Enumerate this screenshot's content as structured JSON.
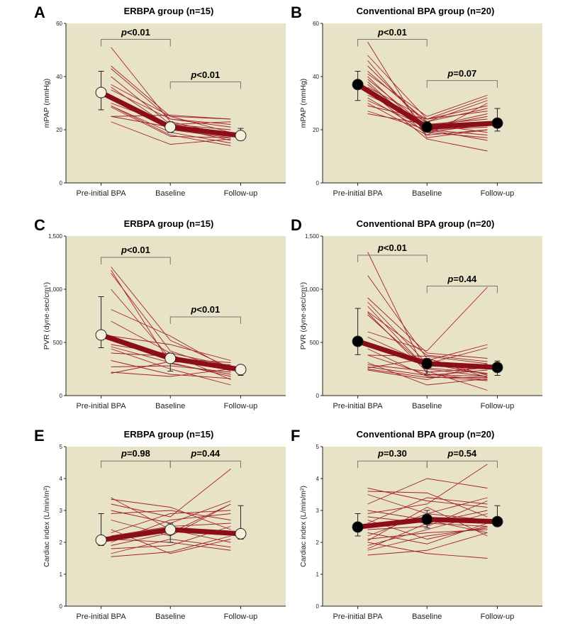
{
  "colors": {
    "plot_bg": "#e8e3c7",
    "individual": "#a3202e",
    "mean": "#8b0d1c",
    "bracket": "#777777",
    "open_marker": "#f4f0dc",
    "filled_marker": "#000000"
  },
  "chart_data": [
    {
      "letter": "A",
      "type": "line",
      "title": "ERBPA group (n=15)",
      "ylabel": "mPAP (mmHg)",
      "ylim": [
        0,
        60
      ],
      "yticks": [
        0,
        20,
        40,
        60
      ],
      "ytick_labels": [
        "0",
        "20",
        "40",
        "60"
      ],
      "categories": [
        "Pre-initial BPA",
        "Baseline",
        "Follow-up"
      ],
      "marker": "open",
      "mean": [
        34,
        21,
        17.8
      ],
      "err_low": [
        27.5,
        19,
        16
      ],
      "err_high": [
        42,
        23,
        20.5
      ],
      "comparisons": [
        {
          "from": 0,
          "to": 1,
          "level": 54,
          "label": "p<0.01"
        },
        {
          "from": 1,
          "to": 2,
          "level": 38,
          "label": "p<0.01"
        }
      ],
      "individuals": [
        [
          51,
          23,
          18
        ],
        [
          44,
          25,
          24
        ],
        [
          43,
          24,
          22
        ],
        [
          40,
          22,
          20
        ],
        [
          37,
          25,
          19
        ],
        [
          36,
          21,
          16
        ],
        [
          35,
          24,
          21
        ],
        [
          33,
          20,
          17
        ],
        [
          30,
          22,
          23
        ],
        [
          29,
          19,
          15
        ],
        [
          29,
          18,
          14
        ],
        [
          28.5,
          17.5,
          17
        ],
        [
          25,
          25.5,
          24
        ],
        [
          25,
          21,
          18
        ],
        [
          23,
          14.5,
          16.5
        ]
      ]
    },
    {
      "letter": "B",
      "type": "line",
      "title": "Conventional BPA group (n=20)",
      "ylabel": "mPAP (mmHg)",
      "ylim": [
        0,
        60
      ],
      "yticks": [
        0,
        20,
        40,
        60
      ],
      "ytick_labels": [
        "0",
        "20",
        "40",
        "60"
      ],
      "categories": [
        "Pre-initial BPA",
        "Baseline",
        "Follow-up"
      ],
      "marker": "filled",
      "mean": [
        37,
        21,
        22.5
      ],
      "err_low": [
        31,
        19.5,
        19.5
      ],
      "err_high": [
        42,
        23,
        28
      ],
      "comparisons": [
        {
          "from": 0,
          "to": 1,
          "level": 54,
          "label": "p<0.01"
        },
        {
          "from": 1,
          "to": 2,
          "level": 38.5,
          "label": "p=0.07"
        }
      ],
      "individuals": [
        [
          53,
          17,
          20
        ],
        [
          48,
          24,
          32
        ],
        [
          46,
          20,
          21
        ],
        [
          44,
          22,
          19
        ],
        [
          42,
          23,
          28
        ],
        [
          41,
          25,
          33
        ],
        [
          40,
          19,
          22
        ],
        [
          39,
          21,
          25
        ],
        [
          38,
          18,
          30
        ],
        [
          37,
          20,
          18
        ],
        [
          36,
          24,
          27
        ],
        [
          35,
          16.5,
          12
        ],
        [
          34,
          22,
          23
        ],
        [
          33,
          23,
          31
        ],
        [
          32,
          19,
          17
        ],
        [
          31,
          21,
          26
        ],
        [
          30,
          18,
          20
        ],
        [
          29,
          24,
          29
        ],
        [
          27,
          20,
          16
        ],
        [
          26,
          22,
          24
        ]
      ]
    },
    {
      "letter": "C",
      "type": "line",
      "title": "ERBPA group (n=15)",
      "ylabel": "PVR (dyne·sec/cm⁵)",
      "ylim": [
        0,
        1500
      ],
      "yticks": [
        0,
        500,
        1000,
        1500
      ],
      "ytick_labels": [
        "0",
        "500",
        "1,000",
        "1,500"
      ],
      "categories": [
        "Pre-initial BPA",
        "Baseline",
        "Follow-up"
      ],
      "marker": "open",
      "mean": [
        570,
        350,
        245
      ],
      "err_low": [
        450,
        230,
        190
      ],
      "err_high": [
        930,
        400,
        290
      ],
      "comparisons": [
        {
          "from": 0,
          "to": 1,
          "level": 1300,
          "label": "p<0.01"
        },
        {
          "from": 1,
          "to": 2,
          "level": 740,
          "label": "p<0.01"
        }
      ],
      "individuals": [
        [
          1210,
          520,
          260
        ],
        [
          1180,
          300,
          200
        ],
        [
          1150,
          420,
          230
        ],
        [
          1000,
          350,
          310
        ],
        [
          810,
          560,
          240
        ],
        [
          700,
          400,
          280
        ],
        [
          560,
          480,
          330
        ],
        [
          480,
          390,
          150
        ],
        [
          460,
          310,
          180
        ],
        [
          440,
          250,
          100
        ],
        [
          400,
          370,
          270
        ],
        [
          330,
          200,
          160
        ],
        [
          270,
          280,
          220
        ],
        [
          220,
          180,
          250
        ],
        [
          210,
          320,
          290
        ]
      ]
    },
    {
      "letter": "D",
      "type": "line",
      "title": "Conventional BPA group (n=20)",
      "ylabel": "PVR (dyne·sec/cm⁵)",
      "ylim": [
        0,
        1500
      ],
      "yticks": [
        0,
        500,
        1000,
        1500
      ],
      "ytick_labels": [
        "0",
        "500",
        "1,000",
        "1,500"
      ],
      "categories": [
        "Pre-initial BPA",
        "Baseline",
        "Follow-up"
      ],
      "marker": "filled",
      "mean": [
        510,
        300,
        265
      ],
      "err_low": [
        385,
        200,
        190
      ],
      "err_high": [
        820,
        350,
        325
      ],
      "comparisons": [
        {
          "from": 0,
          "to": 1,
          "level": 1320,
          "label": "p<0.01"
        },
        {
          "from": 1,
          "to": 2,
          "level": 1030,
          "label": "p=0.44"
        }
      ],
      "individuals": [
        [
          1350,
          200,
          150
        ],
        [
          1130,
          350,
          170
        ],
        [
          920,
          400,
          350
        ],
        [
          880,
          300,
          450
        ],
        [
          840,
          250,
          180
        ],
        [
          790,
          380,
          320
        ],
        [
          780,
          220,
          260
        ],
        [
          760,
          260,
          210
        ],
        [
          600,
          420,
          1020
        ],
        [
          550,
          300,
          200
        ],
        [
          480,
          330,
          480
        ],
        [
          440,
          180,
          140
        ],
        [
          380,
          370,
          300
        ],
        [
          380,
          200,
          180
        ],
        [
          310,
          100,
          160
        ],
        [
          290,
          230,
          50
        ],
        [
          270,
          190,
          240
        ],
        [
          260,
          350,
          190
        ],
        [
          250,
          170,
          170
        ],
        [
          240,
          150,
          300
        ]
      ]
    },
    {
      "letter": "E",
      "type": "line",
      "title": "ERBPA group (n=15)",
      "ylabel": "Cardiac index (L/min/m²)",
      "ylim": [
        0,
        5
      ],
      "yticks": [
        0,
        1,
        2,
        3,
        4,
        5
      ],
      "ytick_labels": [
        "0",
        "1",
        "2",
        "3",
        "4",
        "5"
      ],
      "categories": [
        "Pre-initial BPA",
        "Baseline",
        "Follow-up"
      ],
      "marker": "open",
      "mean": [
        2.07,
        2.4,
        2.27
      ],
      "err_low": [
        1.9,
        2.0,
        2.1
      ],
      "err_high": [
        2.9,
        2.6,
        3.15
      ],
      "comparisons": [
        {
          "from": 0,
          "to": 1,
          "level": 4.55,
          "label": "p=0.98"
        },
        {
          "from": 1,
          "to": 2,
          "level": 4.55,
          "label": "p=0.44"
        }
      ],
      "individuals": [
        [
          3.4,
          2.4,
          2.0
        ],
        [
          3.35,
          3.1,
          2.4
        ],
        [
          3.2,
          2.8,
          4.3
        ],
        [
          3.0,
          2.6,
          3.3
        ],
        [
          2.9,
          3.0,
          2.7
        ],
        [
          2.7,
          2.2,
          3.2
        ],
        [
          2.4,
          1.65,
          2.1
        ],
        [
          2.3,
          2.9,
          3.0
        ],
        [
          2.2,
          2.5,
          2.6
        ],
        [
          2.1,
          2.0,
          1.75
        ],
        [
          2.0,
          2.7,
          2.9
        ],
        [
          1.9,
          2.3,
          3.2
        ],
        [
          1.8,
          1.9,
          2.5
        ],
        [
          1.65,
          2.1,
          1.85
        ],
        [
          1.55,
          1.7,
          2.2
        ]
      ]
    },
    {
      "letter": "F",
      "type": "line",
      "title": "Conventional BPA group (n=20)",
      "ylabel": "Cardiac index (L/min/m²)",
      "ylim": [
        0,
        5
      ],
      "yticks": [
        0,
        1,
        2,
        3,
        4,
        5
      ],
      "ytick_labels": [
        "0",
        "1",
        "2",
        "3",
        "4",
        "5"
      ],
      "categories": [
        "Pre-initial BPA",
        "Baseline",
        "Follow-up"
      ],
      "marker": "filled",
      "mean": [
        2.48,
        2.72,
        2.65
      ],
      "err_low": [
        2.2,
        2.45,
        2.5
      ],
      "err_high": [
        2.9,
        3.0,
        3.15
      ],
      "comparisons": [
        {
          "from": 0,
          "to": 1,
          "level": 4.55,
          "label": "p=0.30"
        },
        {
          "from": 1,
          "to": 2,
          "level": 4.55,
          "label": "p=0.54"
        }
      ],
      "individuals": [
        [
          3.7,
          3.3,
          3.1
        ],
        [
          3.6,
          3.55,
          2.8
        ],
        [
          3.5,
          2.9,
          3.4
        ],
        [
          3.2,
          4.0,
          3.7
        ],
        [
          3.0,
          2.7,
          2.3
        ],
        [
          2.9,
          3.2,
          4.45
        ],
        [
          2.8,
          2.6,
          3.0
        ],
        [
          2.7,
          2.1,
          2.5
        ],
        [
          2.6,
          3.4,
          3.2
        ],
        [
          2.5,
          2.8,
          2.6
        ],
        [
          2.4,
          2.5,
          3.3
        ],
        [
          2.3,
          1.95,
          2.6
        ],
        [
          2.2,
          2.9,
          2.7
        ],
        [
          2.1,
          2.3,
          2.4
        ],
        [
          2.05,
          3.1,
          2.2
        ],
        [
          2.0,
          1.65,
          1.5
        ],
        [
          1.9,
          2.4,
          2.9
        ],
        [
          1.8,
          2.6,
          2.5
        ],
        [
          1.6,
          1.75,
          2.3
        ],
        [
          1.75,
          2.2,
          2.45
        ]
      ]
    }
  ]
}
